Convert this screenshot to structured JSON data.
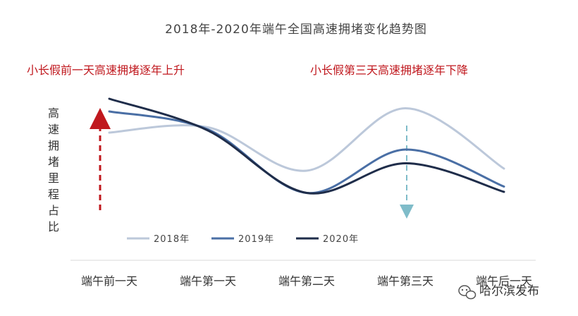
{
  "chart_data": {
    "type": "line",
    "title": "2018年-2020年端午全国高速拥堵变化趋势图",
    "ylabel": "高速拥堵里程占比",
    "categories": [
      "端午前一天",
      "端午第一天",
      "端午第二天",
      "端午第三天",
      "端午后一天"
    ],
    "ylim": [
      0,
      1
    ],
    "grid": false,
    "legend_position": "bottom",
    "series": [
      {
        "name": "2018年",
        "color": "#bcc8da",
        "values": [
          0.68,
          0.73,
          0.32,
          0.91,
          0.34
        ]
      },
      {
        "name": "2019年",
        "color": "#4a6fa5",
        "values": [
          0.88,
          0.71,
          0.11,
          0.52,
          0.17
        ]
      },
      {
        "name": "2020年",
        "color": "#1f2d4a",
        "values": [
          1.0,
          0.7,
          0.11,
          0.39,
          0.12
        ]
      }
    ],
    "annotations": [
      {
        "text": "小长假前一天高速拥堵逐年上升",
        "color": "#c0181e",
        "arrow": "up",
        "arrow_color": "#c0181e",
        "category": "端午前一天"
      },
      {
        "text": "小长假第三天高速拥堵逐年下降",
        "color": "#c0181e",
        "arrow": "down",
        "arrow_color": "#7fbcc9",
        "category": "端午第三天"
      }
    ]
  },
  "watermark": {
    "text": "哈尔滨发布",
    "icon": "wechat-icon"
  }
}
